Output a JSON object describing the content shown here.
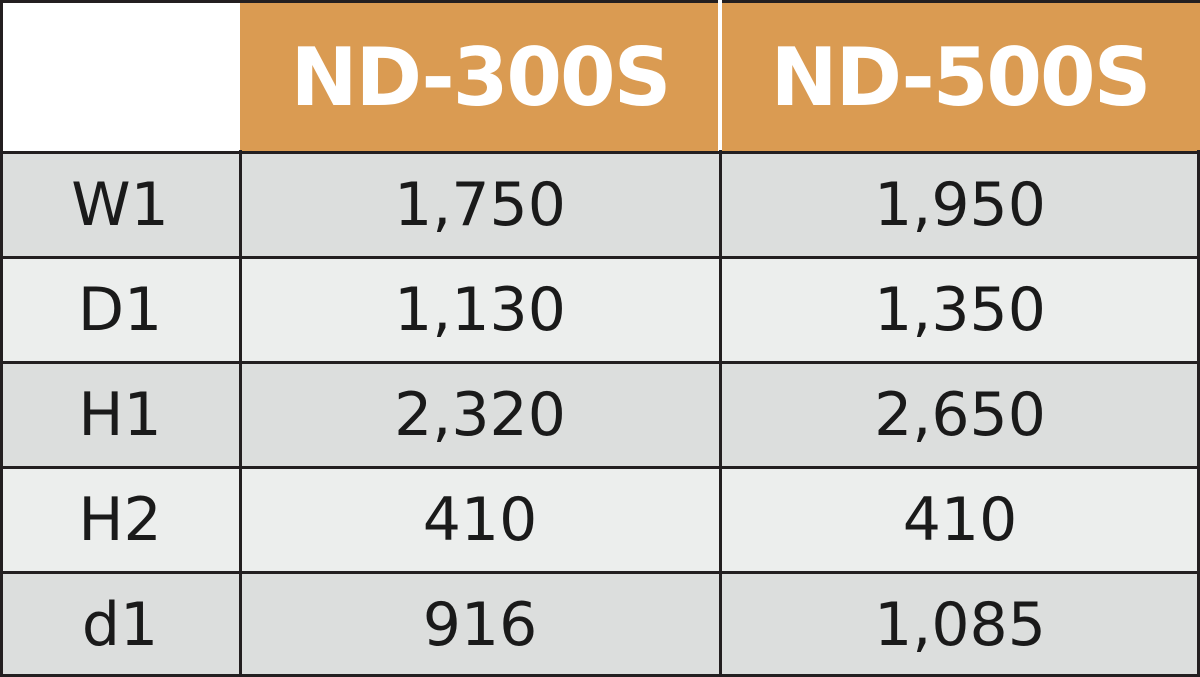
{
  "table": {
    "header": [
      "ND-300S",
      "ND-500S"
    ],
    "rows": [
      [
        "W1",
        "1,750",
        "1,950"
      ],
      [
        "D1",
        "1,130",
        "1,350"
      ],
      [
        "H1",
        "2,320",
        "2,650"
      ],
      [
        "H2",
        "410",
        "410"
      ],
      [
        "d1",
        "916",
        "1,085"
      ]
    ]
  }
}
